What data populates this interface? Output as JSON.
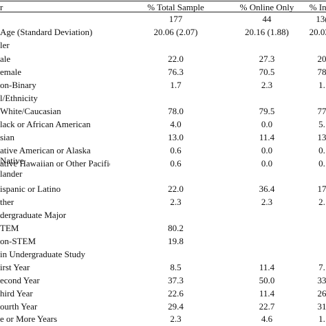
{
  "header": {
    "variable": "r",
    "col1": "% Total Sample",
    "col2": "% Online Only",
    "col3": "% In-P"
  },
  "rows": [
    {
      "label": "",
      "c1": "177",
      "c2": "44",
      "c3": "13("
    },
    {
      "label": " Age (Standard Deviation)",
      "c1": "20.06 (2.07)",
      "c2": "20.16 (1.88)",
      "c3": "20.03 ("
    },
    {
      "label": "ler",
      "c1": "",
      "c2": "",
      "c3": ""
    },
    {
      "label": "ale",
      "c1": "22.0",
      "c2": "27.3",
      "c3": "20"
    },
    {
      "label": "emale",
      "c1": "76.3",
      "c2": "70.5",
      "c3": "78"
    },
    {
      "label": "on-Binary",
      "c1": "1.7",
      "c2": "2.3",
      "c3": "1."
    },
    {
      "label": "l/Ethnicity",
      "c1": "",
      "c2": "",
      "c3": ""
    },
    {
      "label": "White/Caucasian",
      "c1": "78.0",
      "c2": "79.5",
      "c3": "77"
    },
    {
      "label": "lack or African American",
      "c1": "4.0",
      "c2": "0.0",
      "c3": "5."
    },
    {
      "label": "sian",
      "c1": "13.0",
      "c2": "11.4",
      "c3": "13"
    },
    {
      "label": "ative American or Alaska Native",
      "c1": "0.6",
      "c2": "0.0",
      "c3": "0."
    },
    {
      "label": "ative Hawaiian or Other Pacific\nlander",
      "c1": "0.6",
      "c2": "0.0",
      "c3": "0."
    },
    {
      "label": "ispanic or Latino",
      "c1": "22.0",
      "c2": "36.4",
      "c3": "17"
    },
    {
      "label": "ther",
      "c1": "2.3",
      "c2": "2.3",
      "c3": "2."
    },
    {
      "label": "dergraduate Major",
      "c1": "",
      "c2": "",
      "c3": ""
    },
    {
      "label": "TEM",
      "c1": "80.2",
      "c2": "",
      "c3": ""
    },
    {
      "label": "on-STEM",
      "c1": "19.8",
      "c2": "",
      "c3": ""
    },
    {
      "label": "in Undergraduate Study",
      "c1": "",
      "c2": "",
      "c3": ""
    },
    {
      "label": "irst Year",
      "c1": "8.5",
      "c2": "11.4",
      "c3": "7."
    },
    {
      "label": "econd Year",
      "c1": "37.3",
      "c2": "50.0",
      "c3": "33"
    },
    {
      "label": "hird Year",
      "c1": "22.6",
      "c2": "11.4",
      "c3": "26"
    },
    {
      "label": "ourth Year",
      "c1": "29.4",
      "c2": "22.7",
      "c3": "31"
    },
    {
      "label": "e or More Years",
      "c1": "2.3",
      "c2": "4.6",
      "c3": "1."
    }
  ]
}
